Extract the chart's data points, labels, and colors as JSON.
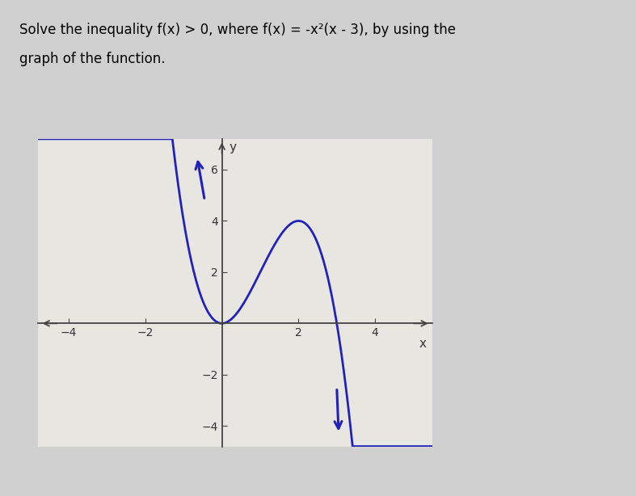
{
  "background_color": "#d0d0d0",
  "plot_bg_color": "#e8e6e0",
  "curve_color": "#2222bb",
  "curve_linewidth": 2.0,
  "xmin": -4.8,
  "xmax": 5.5,
  "ymin": -4.8,
  "ymax": 7.2,
  "x_ticks": [
    -4,
    -2,
    2,
    4
  ],
  "y_ticks": [
    -4,
    -2,
    2,
    4,
    6
  ],
  "xlabel": "x",
  "ylabel": "y",
  "axis_label_fontsize": 11,
  "tick_fontsize": 10,
  "title_fontsize": 12,
  "arrow_color": "#2222bb",
  "title_line1": "Solve the inequality f(x) > 0, where f(x) = -x²(x - 3), by using the",
  "title_line2": "graph of the function."
}
